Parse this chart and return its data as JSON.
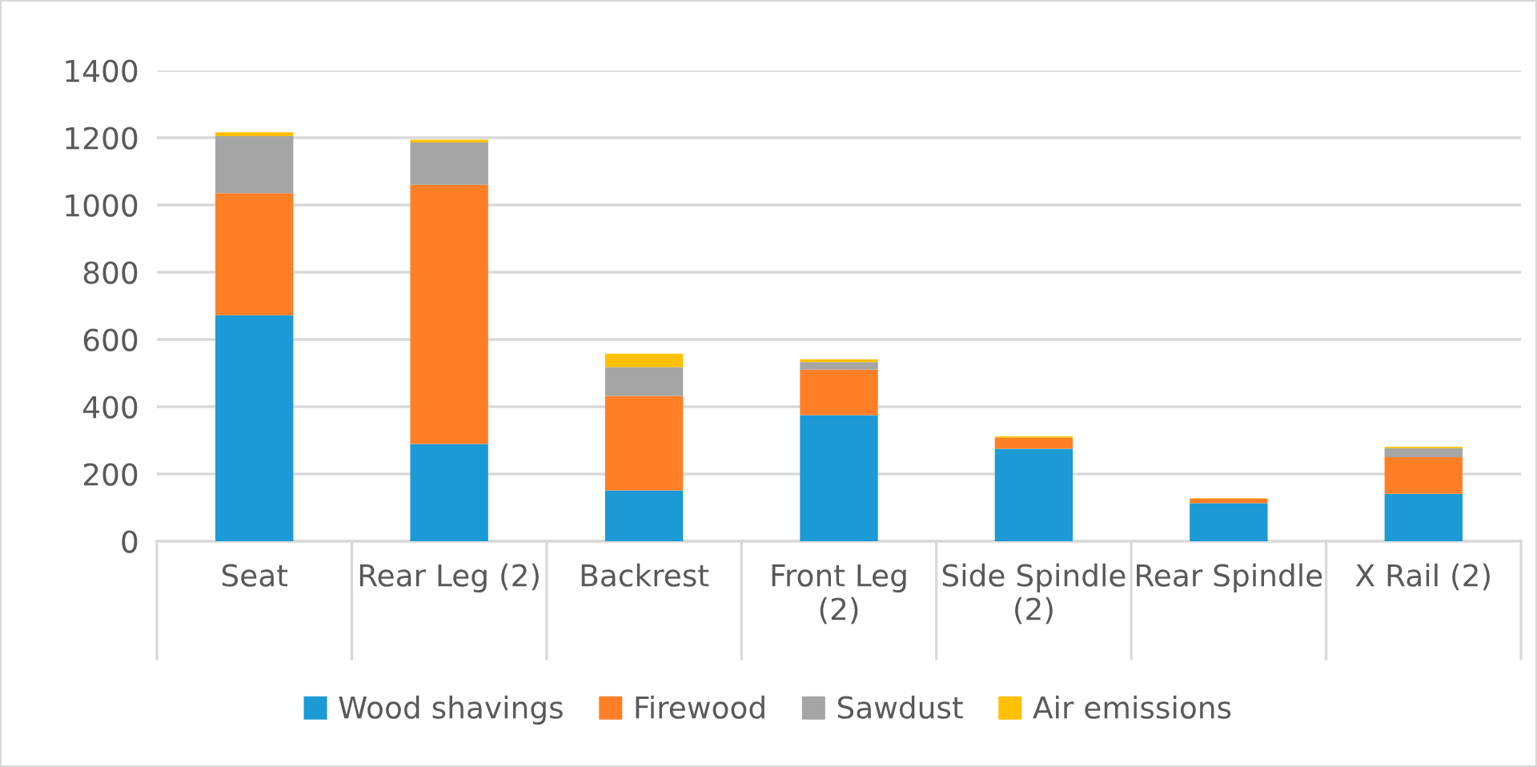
{
  "chart_data": {
    "type": "bar",
    "stacked": true,
    "categories": [
      "Seat",
      "Rear Leg (2)",
      "Backrest",
      "Front Leg (2)",
      "Side Spindle (2)",
      "Rear Spindle",
      "X Rail (2)"
    ],
    "series": [
      {
        "name": "Wood shavings",
        "color": "#1c9ad6",
        "values": [
          672,
          289,
          151,
          375,
          275,
          113,
          141
        ]
      },
      {
        "name": "Firewood",
        "color": "#ff7f27",
        "values": [
          363,
          771,
          281,
          135,
          33,
          14,
          109
        ]
      },
      {
        "name": "Sawdust",
        "color": "#a5a5a5",
        "values": [
          170,
          126,
          86,
          23,
          null,
          null,
          27
        ]
      },
      {
        "name": "Air emissions",
        "color": "#ffc000",
        "values": [
          11,
          8,
          40,
          8,
          4,
          1,
          4
        ]
      }
    ],
    "ylim": [
      0,
      1400
    ],
    "yticks": [
      0,
      200,
      400,
      600,
      800,
      1000,
      1200,
      1400
    ],
    "grid": "y",
    "legend": "bottom"
  }
}
